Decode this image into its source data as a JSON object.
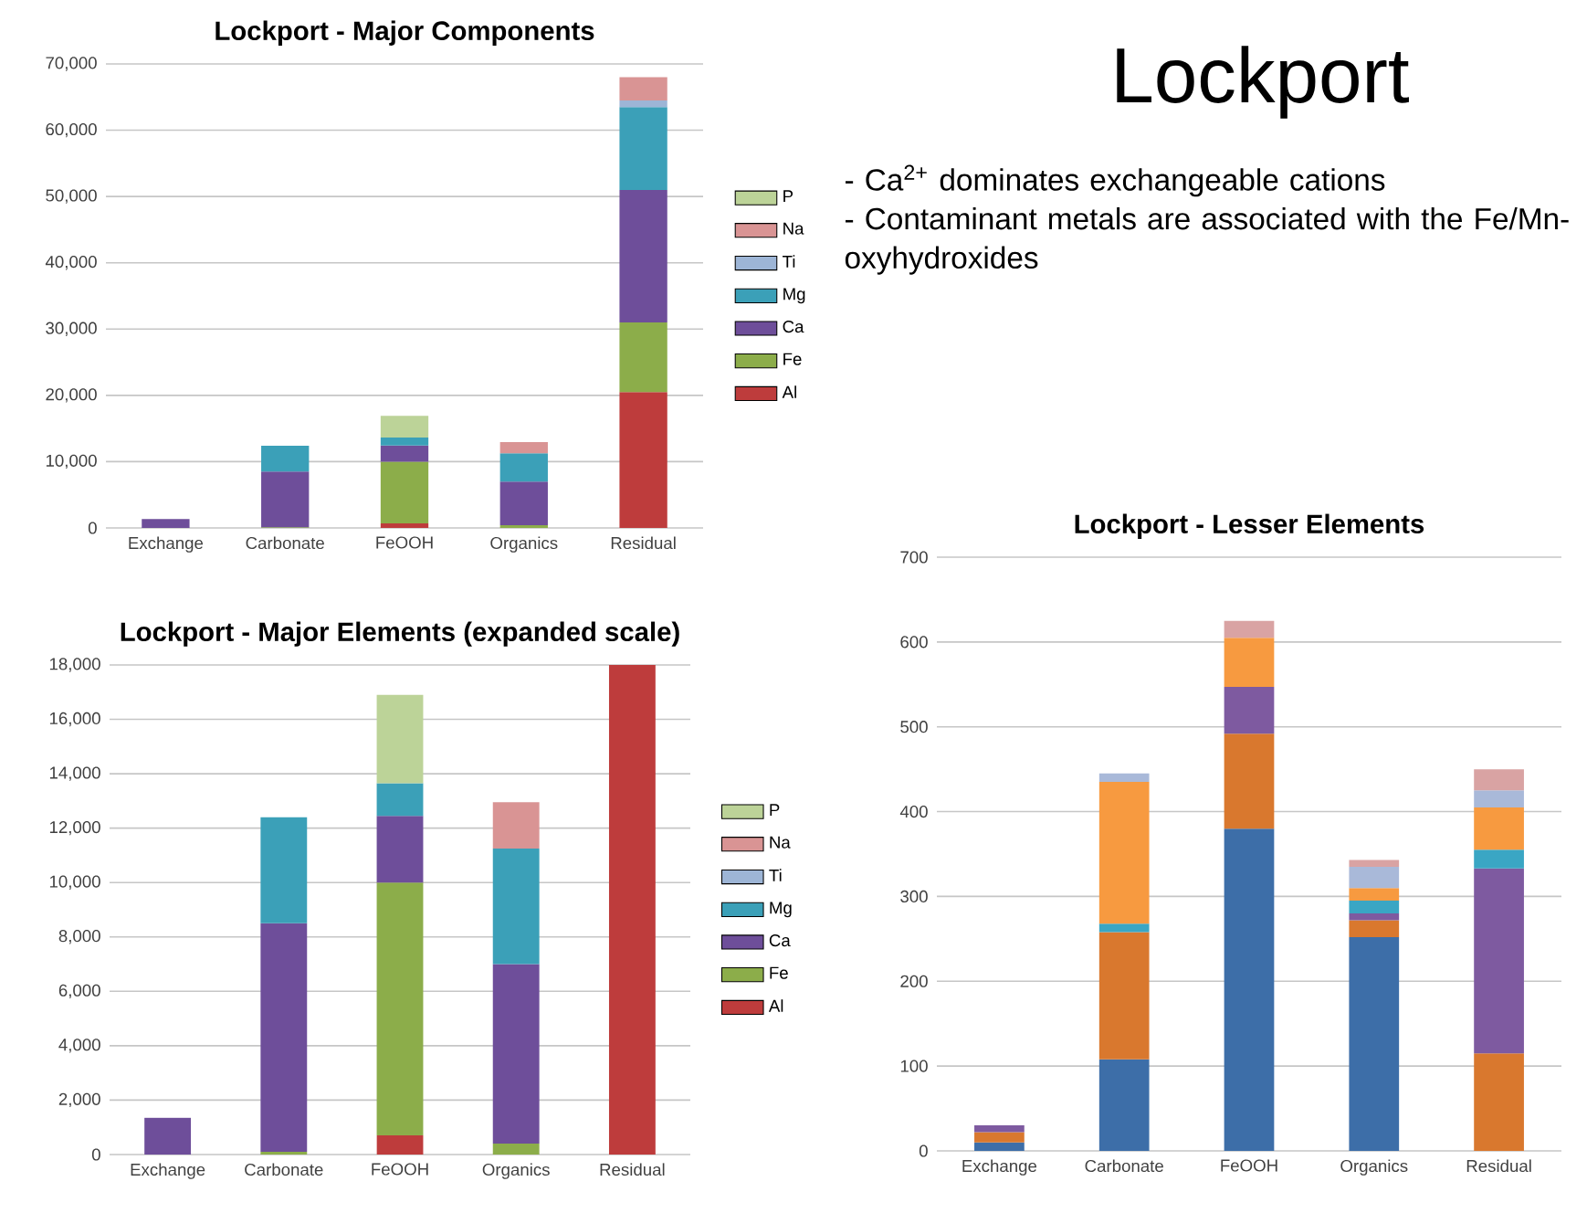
{
  "chart_data": [
    {
      "type": "bar",
      "stacked": true,
      "title": "Lockport - Major Components",
      "categories": [
        "Exchange",
        "Carbonate",
        "FeOOH",
        "Organics",
        "Residual"
      ],
      "ylim": [
        0,
        70000
      ],
      "yticks": [
        0,
        {
          "value": 10000,
          "label": "10,000"
        },
        {
          "value": 20000,
          "label": "20,000"
        },
        {
          "value": 30000,
          "label": "30,000"
        },
        {
          "value": 40000,
          "label": "40,000"
        },
        {
          "value": 50000,
          "label": "50,000"
        },
        {
          "value": 60000,
          "label": "60,000"
        },
        {
          "value": 70000,
          "label": "70,000"
        }
      ],
      "grid": "y",
      "legend": "right",
      "series": [
        {
          "name": "Al",
          "color": "#be3c3c",
          "values": [
            null,
            null,
            700,
            null,
            20500
          ]
        },
        {
          "name": "Fe",
          "color": "#8cad4a",
          "values": [
            null,
            100,
            9300,
            400,
            10500
          ]
        },
        {
          "name": "Ca",
          "color": "#6e4e9a",
          "values": [
            1350,
            8400,
            2450,
            6600,
            20000
          ]
        },
        {
          "name": "Mg",
          "color": "#3ba0b8",
          "values": [
            null,
            3900,
            1200,
            4250,
            12500
          ]
        },
        {
          "name": "Ti",
          "color": "#9db5d6",
          "values": [
            null,
            null,
            null,
            null,
            1000
          ]
        },
        {
          "name": "Na",
          "color": "#d99494",
          "values": [
            null,
            null,
            null,
            1700,
            3500
          ]
        },
        {
          "name": "P",
          "color": "#bcd398",
          "values": [
            null,
            null,
            3250,
            null,
            null
          ]
        }
      ]
    },
    {
      "type": "other",
      "title": "Lockport",
      "annotations": [
        "- Ca$^{2+}$ dominates exchangeable cations",
        "- Contaminant metals are associated with the Fe/Mn-oxyhydroxides"
      ]
    },
    {
      "type": "bar",
      "stacked": true,
      "title": "Lockport - Major Elements (expanded scale)",
      "categories": [
        "Exchange",
        "Carbonate",
        "FeOOH",
        "Organics",
        "Residual"
      ],
      "ylim": [
        0,
        18000
      ],
      "yticks": [
        0,
        {
          "value": 2000,
          "label": "2,000"
        },
        {
          "value": 4000,
          "label": "4,000"
        },
        {
          "value": 6000,
          "label": "6,000"
        },
        {
          "value": 8000,
          "label": "8,000"
        },
        {
          "value": 10000,
          "label": "10,000"
        },
        {
          "value": 12000,
          "label": "12,000"
        },
        {
          "value": 14000,
          "label": "14,000"
        },
        {
          "value": 16000,
          "label": "16,000"
        },
        {
          "value": 18000,
          "label": "18,000"
        }
      ],
      "grid": "y",
      "legend": "right",
      "series": [
        {
          "name": "Al",
          "color": "#be3c3c",
          "values": [
            null,
            null,
            700,
            null,
            18000
          ]
        },
        {
          "name": "Fe",
          "color": "#8cad4a",
          "values": [
            null,
            100,
            9300,
            400,
            null
          ]
        },
        {
          "name": "Ca",
          "color": "#6e4e9a",
          "values": [
            1350,
            8400,
            2450,
            6600,
            null
          ]
        },
        {
          "name": "Mg",
          "color": "#3ba0b8",
          "values": [
            null,
            3900,
            1200,
            4250,
            null
          ]
        },
        {
          "name": "Ti",
          "color": "#9db5d6",
          "values": [
            null,
            null,
            null,
            null,
            null
          ]
        },
        {
          "name": "Na",
          "color": "#d99494",
          "values": [
            null,
            null,
            null,
            1700,
            null
          ]
        },
        {
          "name": "P",
          "color": "#bcd398",
          "values": [
            null,
            null,
            3250,
            null,
            null
          ]
        }
      ]
    },
    {
      "type": "bar",
      "stacked": true,
      "title": "Lockport - Lesser Elements",
      "categories": [
        "Exchange",
        "Carbonate",
        "FeOOH",
        "Organics",
        "Residual"
      ],
      "ylim": [
        0,
        700
      ],
      "yticks": [
        0,
        100,
        200,
        300,
        400,
        500,
        600,
        700
      ],
      "grid": "y",
      "series": [
        {
          "color": "#3d6ea8",
          "values": [
            10,
            108,
            380,
            252,
            null
          ]
        },
        {
          "color": "#d9782e",
          "values": [
            12,
            150,
            112,
            20,
            115
          ]
        },
        {
          "color": "#7e5aa0",
          "values": [
            8,
            null,
            55,
            8,
            218
          ]
        },
        {
          "color": "#3aa6c4",
          "values": [
            null,
            10,
            null,
            15,
            22
          ]
        },
        {
          "color": "#f79a40",
          "values": [
            null,
            167,
            58,
            15,
            50
          ]
        },
        {
          "color": "#a9b9d9",
          "values": [
            null,
            10,
            null,
            25,
            20
          ]
        },
        {
          "color": "#d9a3a3",
          "values": [
            null,
            null,
            20,
            8,
            25
          ]
        }
      ]
    }
  ]
}
